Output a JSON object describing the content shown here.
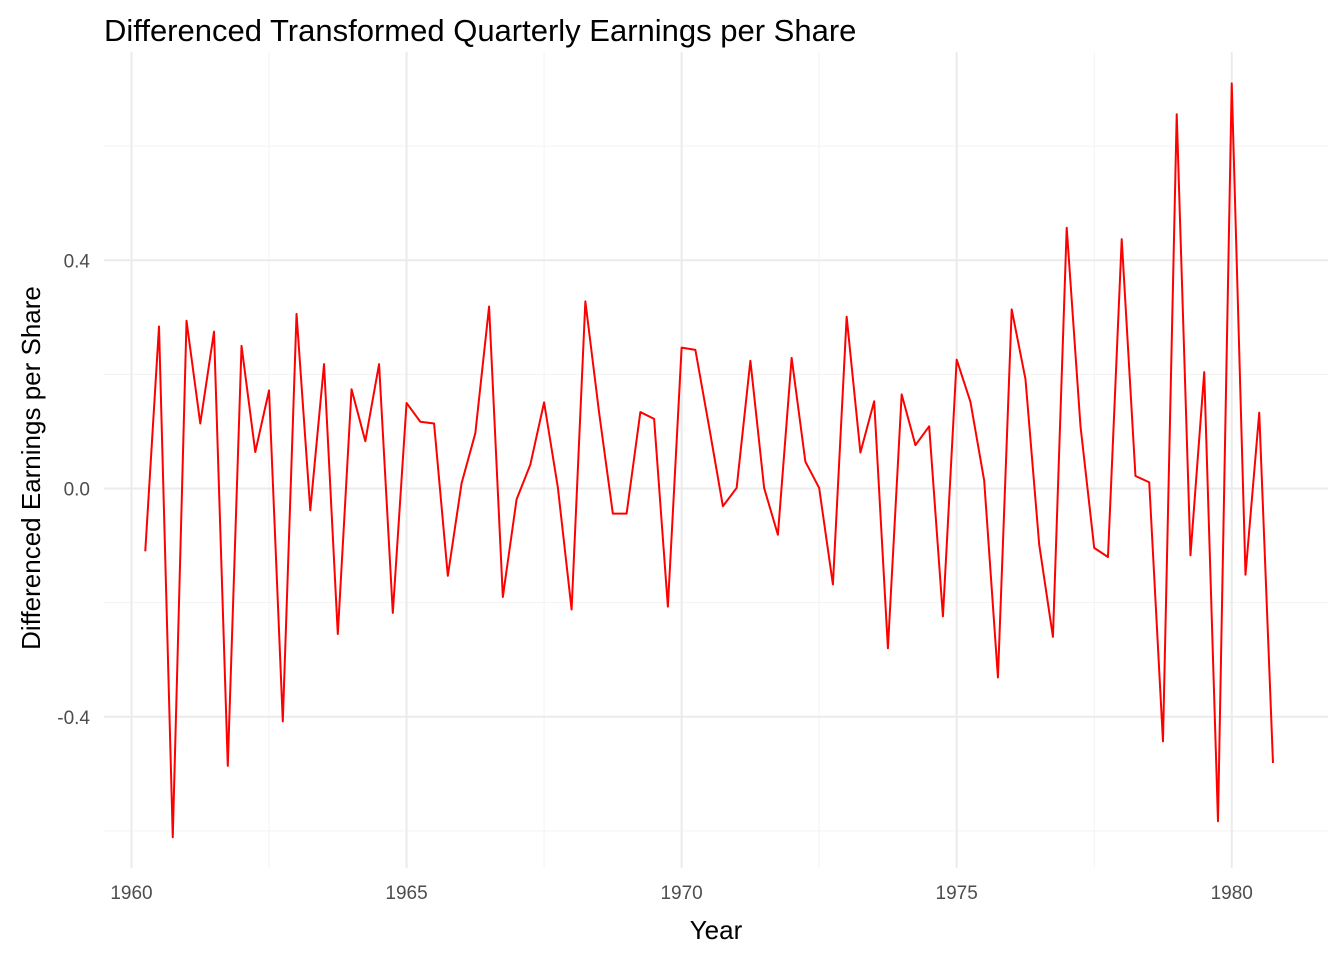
{
  "chart_data": {
    "type": "line",
    "title": "Differenced Transformed Quarterly Earnings per Share",
    "xlabel": "Year",
    "ylabel": "Differenced Earnings per Share",
    "xlim": [
      1959.5,
      1981.75
    ],
    "ylim": [
      -0.665,
      0.765
    ],
    "x_ticks": [
      1960,
      1965,
      1970,
      1975,
      1980
    ],
    "x_tick_labels": [
      "1960",
      "1965",
      "1970",
      "1975",
      "1980"
    ],
    "y_ticks": [
      -0.4,
      0.0,
      0.4
    ],
    "y_tick_labels": [
      "-0.4",
      "0.0",
      "0.4"
    ],
    "grid": true,
    "legend": "none",
    "series": [
      {
        "color": "#ff0000",
        "x": [
          1960.25,
          1960.5,
          1960.75,
          1961.0,
          1961.25,
          1961.5,
          1961.75,
          1962.0,
          1962.25,
          1962.5,
          1962.75,
          1963.0,
          1963.25,
          1963.5,
          1963.75,
          1964.0,
          1964.25,
          1964.5,
          1964.75,
          1965.0,
          1965.25,
          1965.5,
          1965.75,
          1966.0,
          1966.25,
          1966.5,
          1966.75,
          1967.0,
          1967.25,
          1967.5,
          1967.75,
          1968.0,
          1968.25,
          1968.5,
          1968.75,
          1969.0,
          1969.25,
          1969.5,
          1969.75,
          1970.0,
          1970.25,
          1970.5,
          1970.75,
          1971.0,
          1971.25,
          1971.5,
          1971.75,
          1972.0,
          1972.25,
          1972.5,
          1972.75,
          1973.0,
          1973.25,
          1973.5,
          1973.75,
          1974.0,
          1974.25,
          1974.5,
          1974.75,
          1975.0,
          1975.25,
          1975.5,
          1975.75,
          1976.0,
          1976.25,
          1976.5,
          1976.75,
          1977.0,
          1977.25,
          1977.5,
          1977.75,
          1978.0,
          1978.25,
          1978.5,
          1978.75,
          1979.0,
          1979.25,
          1979.5,
          1979.75,
          1980.0,
          1980.25,
          1980.5,
          1980.75
        ],
        "values": [
          -0.11,
          0.284,
          -0.611,
          0.294,
          0.114,
          0.275,
          -0.486,
          0.25,
          0.064,
          0.172,
          -0.408,
          0.306,
          -0.038,
          0.218,
          -0.255,
          0.174,
          0.083,
          0.218,
          -0.218,
          0.15,
          0.117,
          0.114,
          -0.153,
          0.009,
          0.097,
          0.319,
          -0.19,
          -0.019,
          0.042,
          0.151,
          0.002,
          -0.212,
          0.328,
          0.133,
          -0.044,
          -0.044,
          0.134,
          0.122,
          -0.207,
          0.247,
          0.243,
          0.108,
          -0.031,
          0.001,
          0.224,
          0.001,
          -0.081,
          0.229,
          0.047,
          0.001,
          -0.168,
          0.301,
          0.063,
          0.153,
          -0.28,
          0.165,
          0.076,
          0.109,
          -0.224,
          0.226,
          0.152,
          0.014,
          -0.331,
          0.314,
          0.192,
          -0.098,
          -0.26,
          0.457,
          0.11,
          -0.104,
          -0.12,
          0.437,
          0.022,
          0.011,
          -0.443,
          0.656,
          -0.117,
          0.204,
          -0.583,
          0.71,
          -0.151,
          0.133,
          -0.481
        ]
      }
    ]
  }
}
